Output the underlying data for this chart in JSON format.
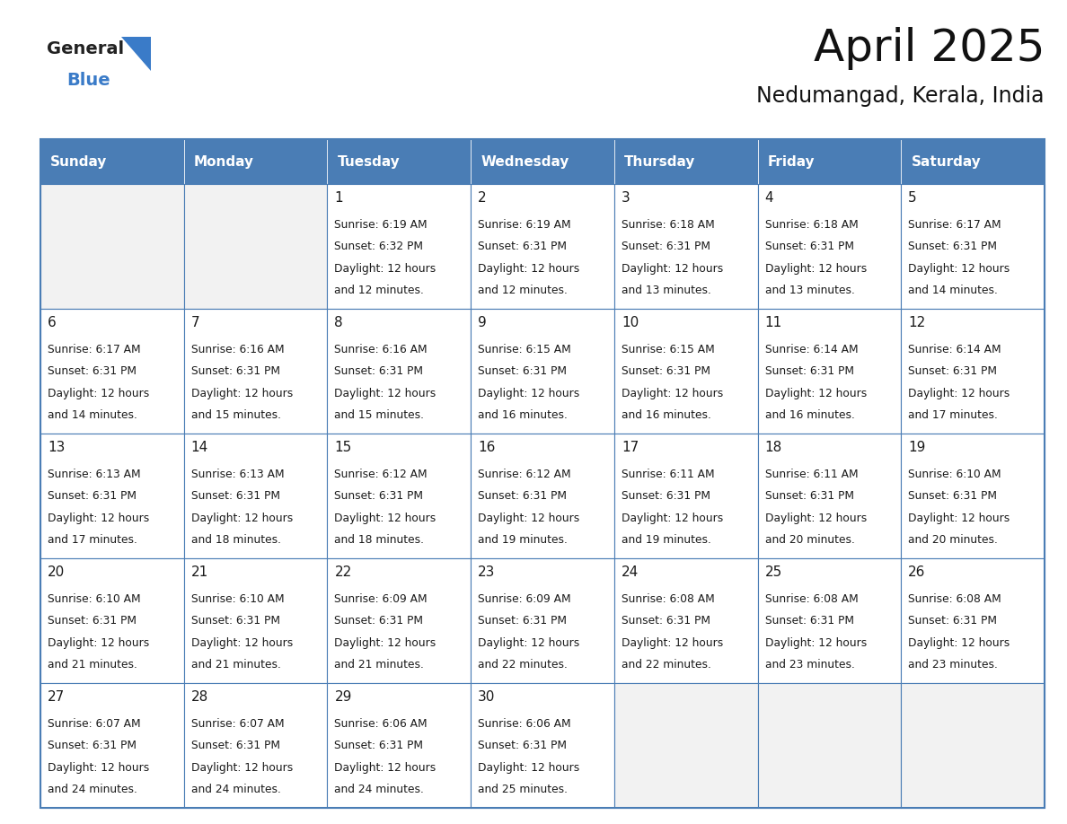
{
  "title": "April 2025",
  "subtitle": "Nedumangad, Kerala, India",
  "header_color": "#4A7DB5",
  "header_text_color": "#FFFFFF",
  "cell_bg_white": "#FFFFFF",
  "cell_bg_gray": "#F2F2F2",
  "border_color": "#4A7DB5",
  "text_color": "#1a1a1a",
  "day_headers": [
    "Sunday",
    "Monday",
    "Tuesday",
    "Wednesday",
    "Thursday",
    "Friday",
    "Saturday"
  ],
  "days": [
    {
      "day": 1,
      "col": 2,
      "row": 0,
      "sunrise": "6:19 AM",
      "sunset": "6:32 PM",
      "daylight": "12 hours and 12 minutes."
    },
    {
      "day": 2,
      "col": 3,
      "row": 0,
      "sunrise": "6:19 AM",
      "sunset": "6:31 PM",
      "daylight": "12 hours and 12 minutes."
    },
    {
      "day": 3,
      "col": 4,
      "row": 0,
      "sunrise": "6:18 AM",
      "sunset": "6:31 PM",
      "daylight": "12 hours and 13 minutes."
    },
    {
      "day": 4,
      "col": 5,
      "row": 0,
      "sunrise": "6:18 AM",
      "sunset": "6:31 PM",
      "daylight": "12 hours and 13 minutes."
    },
    {
      "day": 5,
      "col": 6,
      "row": 0,
      "sunrise": "6:17 AM",
      "sunset": "6:31 PM",
      "daylight": "12 hours and 14 minutes."
    },
    {
      "day": 6,
      "col": 0,
      "row": 1,
      "sunrise": "6:17 AM",
      "sunset": "6:31 PM",
      "daylight": "12 hours and 14 minutes."
    },
    {
      "day": 7,
      "col": 1,
      "row": 1,
      "sunrise": "6:16 AM",
      "sunset": "6:31 PM",
      "daylight": "12 hours and 15 minutes."
    },
    {
      "day": 8,
      "col": 2,
      "row": 1,
      "sunrise": "6:16 AM",
      "sunset": "6:31 PM",
      "daylight": "12 hours and 15 minutes."
    },
    {
      "day": 9,
      "col": 3,
      "row": 1,
      "sunrise": "6:15 AM",
      "sunset": "6:31 PM",
      "daylight": "12 hours and 16 minutes."
    },
    {
      "day": 10,
      "col": 4,
      "row": 1,
      "sunrise": "6:15 AM",
      "sunset": "6:31 PM",
      "daylight": "12 hours and 16 minutes."
    },
    {
      "day": 11,
      "col": 5,
      "row": 1,
      "sunrise": "6:14 AM",
      "sunset": "6:31 PM",
      "daylight": "12 hours and 16 minutes."
    },
    {
      "day": 12,
      "col": 6,
      "row": 1,
      "sunrise": "6:14 AM",
      "sunset": "6:31 PM",
      "daylight": "12 hours and 17 minutes."
    },
    {
      "day": 13,
      "col": 0,
      "row": 2,
      "sunrise": "6:13 AM",
      "sunset": "6:31 PM",
      "daylight": "12 hours and 17 minutes."
    },
    {
      "day": 14,
      "col": 1,
      "row": 2,
      "sunrise": "6:13 AM",
      "sunset": "6:31 PM",
      "daylight": "12 hours and 18 minutes."
    },
    {
      "day": 15,
      "col": 2,
      "row": 2,
      "sunrise": "6:12 AM",
      "sunset": "6:31 PM",
      "daylight": "12 hours and 18 minutes."
    },
    {
      "day": 16,
      "col": 3,
      "row": 2,
      "sunrise": "6:12 AM",
      "sunset": "6:31 PM",
      "daylight": "12 hours and 19 minutes."
    },
    {
      "day": 17,
      "col": 4,
      "row": 2,
      "sunrise": "6:11 AM",
      "sunset": "6:31 PM",
      "daylight": "12 hours and 19 minutes."
    },
    {
      "day": 18,
      "col": 5,
      "row": 2,
      "sunrise": "6:11 AM",
      "sunset": "6:31 PM",
      "daylight": "12 hours and 20 minutes."
    },
    {
      "day": 19,
      "col": 6,
      "row": 2,
      "sunrise": "6:10 AM",
      "sunset": "6:31 PM",
      "daylight": "12 hours and 20 minutes."
    },
    {
      "day": 20,
      "col": 0,
      "row": 3,
      "sunrise": "6:10 AM",
      "sunset": "6:31 PM",
      "daylight": "12 hours and 21 minutes."
    },
    {
      "day": 21,
      "col": 1,
      "row": 3,
      "sunrise": "6:10 AM",
      "sunset": "6:31 PM",
      "daylight": "12 hours and 21 minutes."
    },
    {
      "day": 22,
      "col": 2,
      "row": 3,
      "sunrise": "6:09 AM",
      "sunset": "6:31 PM",
      "daylight": "12 hours and 21 minutes."
    },
    {
      "day": 23,
      "col": 3,
      "row": 3,
      "sunrise": "6:09 AM",
      "sunset": "6:31 PM",
      "daylight": "12 hours and 22 minutes."
    },
    {
      "day": 24,
      "col": 4,
      "row": 3,
      "sunrise": "6:08 AM",
      "sunset": "6:31 PM",
      "daylight": "12 hours and 22 minutes."
    },
    {
      "day": 25,
      "col": 5,
      "row": 3,
      "sunrise": "6:08 AM",
      "sunset": "6:31 PM",
      "daylight": "12 hours and 23 minutes."
    },
    {
      "day": 26,
      "col": 6,
      "row": 3,
      "sunrise": "6:08 AM",
      "sunset": "6:31 PM",
      "daylight": "12 hours and 23 minutes."
    },
    {
      "day": 27,
      "col": 0,
      "row": 4,
      "sunrise": "6:07 AM",
      "sunset": "6:31 PM",
      "daylight": "12 hours and 24 minutes."
    },
    {
      "day": 28,
      "col": 1,
      "row": 4,
      "sunrise": "6:07 AM",
      "sunset": "6:31 PM",
      "daylight": "12 hours and 24 minutes."
    },
    {
      "day": 29,
      "col": 2,
      "row": 4,
      "sunrise": "6:06 AM",
      "sunset": "6:31 PM",
      "daylight": "12 hours and 24 minutes."
    },
    {
      "day": 30,
      "col": 3,
      "row": 4,
      "sunrise": "6:06 AM",
      "sunset": "6:31 PM",
      "daylight": "12 hours and 25 minutes."
    }
  ],
  "logo_general_color": "#222222",
  "logo_blue_color": "#3A7BC8",
  "logo_triangle_color": "#3A7BC8",
  "figwidth": 11.88,
  "figheight": 9.18,
  "dpi": 100
}
